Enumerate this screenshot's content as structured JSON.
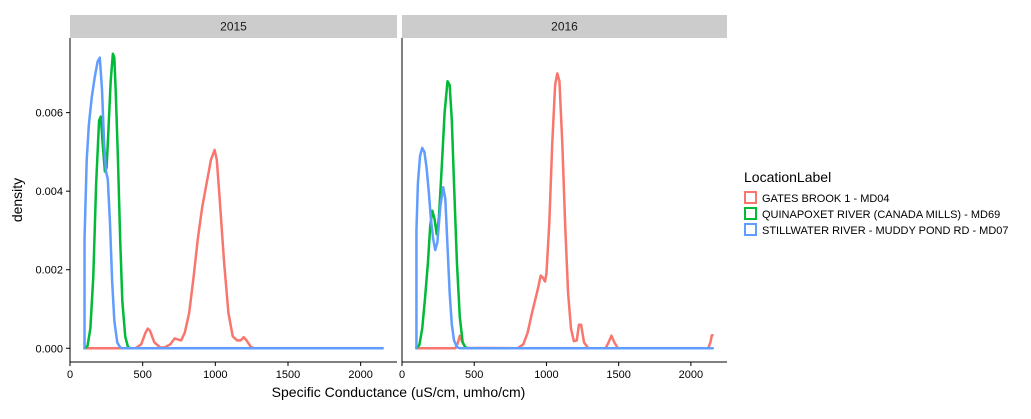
{
  "chart_data": {
    "type": "line",
    "kind": "density",
    "xlabel": "Specific Conductance (uS/cm, umho/cm)",
    "ylabel": "density",
    "xlim": [
      0,
      2250
    ],
    "ylim": [
      -0.00035,
      0.0079
    ],
    "x_ticks": [
      0,
      500,
      1000,
      1500,
      2000
    ],
    "x_tick_labels": [
      "0",
      "500",
      "1000",
      "1500",
      "2000"
    ],
    "y_ticks": [
      0,
      0.002,
      0.004,
      0.006
    ],
    "y_tick_labels": [
      "0.000",
      "0.002",
      "0.004",
      "0.006"
    ],
    "grid": false,
    "legend": {
      "title": "LocationLabel",
      "position": "right",
      "entries": [
        {
          "label": "GATES BROOK 1 - MD04",
          "color": "#F8766D"
        },
        {
          "label": "QUINAPOXET RIVER (CANADA MILLS) - MD69",
          "color": "#00BA38"
        },
        {
          "label": "STILLWATER RIVER - MUDDY POND RD - MD07",
          "color": "#619CFF"
        }
      ]
    },
    "facets": [
      {
        "label": "2015",
        "series": [
          {
            "name": "GATES BROOK 1 - MD04",
            "color": "#F8766D",
            "points": [
              [
                100,
                0
              ],
              [
                450,
                0
              ],
              [
                490,
                0.0001
              ],
              [
                520,
                0.0004
              ],
              [
                535,
                0.0005
              ],
              [
                550,
                0.00045
              ],
              [
                580,
                0.00015
              ],
              [
                620,
                2e-05
              ],
              [
                650,
                2e-05
              ],
              [
                690,
                0.0001
              ],
              [
                720,
                0.00025
              ],
              [
                745,
                0.00022
              ],
              [
                765,
                0.0002
              ],
              [
                790,
                0.0004
              ],
              [
                820,
                0.0009
              ],
              [
                850,
                0.0018
              ],
              [
                880,
                0.0028
              ],
              [
                910,
                0.0036
              ],
              [
                940,
                0.0042
              ],
              [
                970,
                0.0048
              ],
              [
                995,
                0.00505
              ],
              [
                1010,
                0.0048
              ],
              [
                1030,
                0.0038
              ],
              [
                1060,
                0.0022
              ],
              [
                1090,
                0.0009
              ],
              [
                1120,
                0.0003
              ],
              [
                1150,
                0.0002
              ],
              [
                1175,
                0.0002
              ],
              [
                1195,
                0.00028
              ],
              [
                1215,
                0.0002
              ],
              [
                1245,
                3e-05
              ],
              [
                1270,
                0
              ],
              [
                2150,
                0
              ]
            ]
          },
          {
            "name": "QUINAPOXET RIVER (CANADA MILLS) - MD69",
            "color": "#00BA38",
            "points": [
              [
                100,
                0
              ],
              [
                120,
                5e-05
              ],
              [
                140,
                0.0005
              ],
              [
                160,
                0.0018
              ],
              [
                180,
                0.0042
              ],
              [
                200,
                0.0058
              ],
              [
                212,
                0.0059
              ],
              [
                225,
                0.0052
              ],
              [
                240,
                0.0045
              ],
              [
                252,
                0.0046
              ],
              [
                265,
                0.0056
              ],
              [
                280,
                0.0068
              ],
              [
                295,
                0.0075
              ],
              [
                305,
                0.0074
              ],
              [
                315,
                0.0065
              ],
              [
                330,
                0.0048
              ],
              [
                345,
                0.0028
              ],
              [
                360,
                0.0012
              ],
              [
                380,
                0.0003
              ],
              [
                400,
                2e-05
              ],
              [
                420,
                0
              ],
              [
                2150,
                0
              ]
            ]
          },
          {
            "name": "STILLWATER RIVER - MUDDY POND RD - MD07",
            "color": "#619CFF",
            "points": [
              [
                100,
                0
              ],
              [
                100,
                0.0028
              ],
              [
                115,
                0.0048
              ],
              [
                130,
                0.0057
              ],
              [
                150,
                0.0064
              ],
              [
                170,
                0.0069
              ],
              [
                190,
                0.0073
              ],
              [
                205,
                0.0074
              ],
              [
                220,
                0.0066
              ],
              [
                235,
                0.0052
              ],
              [
                248,
                0.0045
              ],
              [
                260,
                0.0043
              ],
              [
                275,
                0.0032
              ],
              [
                290,
                0.0017
              ],
              [
                305,
                0.0007
              ],
              [
                325,
                0.00015
              ],
              [
                345,
                2e-05
              ],
              [
                360,
                0
              ],
              [
                2150,
                0
              ]
            ]
          }
        ]
      },
      {
        "label": "2016",
        "series": [
          {
            "name": "GATES BROOK 1 - MD04",
            "color": "#F8766D",
            "points": [
              [
                100,
                0
              ],
              [
                370,
                0
              ],
              [
                385,
                0.00012
              ],
              [
                400,
                0.00032
              ],
              [
                415,
                0.00018
              ],
              [
                440,
                1e-05
              ],
              [
                800,
                0
              ],
              [
                840,
                0.0001
              ],
              [
                870,
                0.0004
              ],
              [
                900,
                0.0009
              ],
              [
                940,
                0.0015
              ],
              [
                960,
                0.00185
              ],
              [
                975,
                0.0018
              ],
              [
                990,
                0.0017
              ],
              [
                1000,
                0.0019
              ],
              [
                1020,
                0.0032
              ],
              [
                1040,
                0.0052
              ],
              [
                1060,
                0.0067
              ],
              [
                1075,
                0.007
              ],
              [
                1090,
                0.0068
              ],
              [
                1110,
                0.0052
              ],
              [
                1130,
                0.0031
              ],
              [
                1150,
                0.0014
              ],
              [
                1170,
                0.0005
              ],
              [
                1190,
                0.00018
              ],
              [
                1210,
                0.0002
              ],
              [
                1225,
                0.0006
              ],
              [
                1240,
                0.0006
              ],
              [
                1260,
                0.00015
              ],
              [
                1290,
                0
              ],
              [
                1410,
                0
              ],
              [
                1430,
                0.00015
              ],
              [
                1450,
                0.00032
              ],
              [
                1470,
                0.00015
              ],
              [
                1495,
                0
              ],
              [
                2120,
                0
              ],
              [
                2135,
                0.00015
              ],
              [
                2145,
                0.00033
              ],
              [
                2150,
                0.00033
              ]
            ]
          },
          {
            "name": "QUINAPOXET RIVER (CANADA MILLS) - MD69",
            "color": "#00BA38",
            "points": [
              [
                100,
                0
              ],
              [
                120,
                8e-05
              ],
              [
                140,
                0.0005
              ],
              [
                160,
                0.0013
              ],
              [
                180,
                0.0022
              ],
              [
                195,
                0.0031
              ],
              [
                210,
                0.0035
              ],
              [
                225,
                0.0033
              ],
              [
                240,
                0.0029
              ],
              [
                255,
                0.0033
              ],
              [
                275,
                0.0046
              ],
              [
                295,
                0.006
              ],
              [
                315,
                0.0068
              ],
              [
                330,
                0.0067
              ],
              [
                345,
                0.0058
              ],
              [
                360,
                0.0042
              ],
              [
                380,
                0.0022
              ],
              [
                400,
                0.0008
              ],
              [
                420,
                0.00015
              ],
              [
                440,
                2e-05
              ],
              [
                460,
                0
              ],
              [
                2150,
                0
              ]
            ]
          },
          {
            "name": "STILLWATER RIVER - MUDDY POND RD - MD07",
            "color": "#619CFF",
            "points": [
              [
                100,
                0
              ],
              [
                100,
                0.003
              ],
              [
                110,
                0.0042
              ],
              [
                125,
                0.0049
              ],
              [
                140,
                0.0051
              ],
              [
                155,
                0.005
              ],
              [
                170,
                0.0046
              ],
              [
                185,
                0.004
              ],
              [
                200,
                0.0033
              ],
              [
                215,
                0.0028
              ],
              [
                230,
                0.0025
              ],
              [
                245,
                0.0027
              ],
              [
                265,
                0.0036
              ],
              [
                285,
                0.0041
              ],
              [
                300,
                0.0038
              ],
              [
                315,
                0.0026
              ],
              [
                330,
                0.0014
              ],
              [
                345,
                0.0006
              ],
              [
                360,
                0.0002
              ],
              [
                380,
                3e-05
              ],
              [
                400,
                0
              ],
              [
                2150,
                0
              ]
            ]
          }
        ]
      }
    ]
  },
  "colors": {
    "strip_background": "#CCCCCC",
    "axis_line": "#000000"
  }
}
